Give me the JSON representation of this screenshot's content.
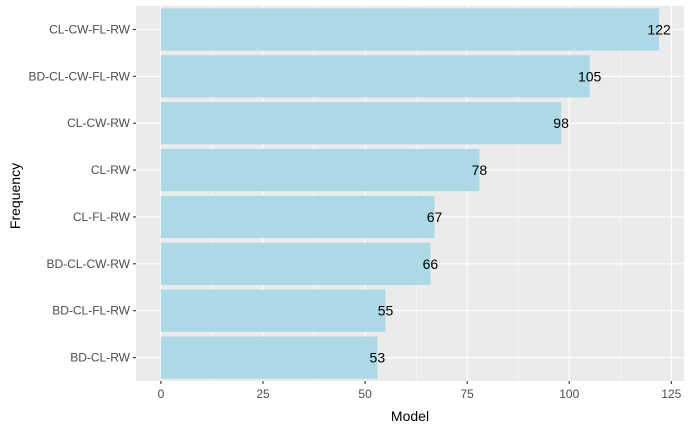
{
  "chart_data": {
    "type": "bar",
    "orientation": "horizontal",
    "categories": [
      "CL-CW-FL-RW",
      "BD-CL-CW-FL-RW",
      "CL-CW-RW",
      "CL-RW",
      "CL-FL-RW",
      "BD-CL-CW-RW",
      "BD-CL-FL-RW",
      "BD-CL-RW"
    ],
    "values": [
      122,
      105,
      98,
      78,
      67,
      66,
      55,
      53
    ],
    "data_labels": [
      "122",
      "105",
      "98",
      "78",
      "67",
      "66",
      "55",
      "53"
    ],
    "xlabel": "Model",
    "ylabel": "Frequency",
    "xlim": [
      -6.1,
      128.1
    ],
    "x_ticks": [
      0,
      25,
      50,
      75,
      100,
      125
    ],
    "x_tick_labels": [
      "0",
      "25",
      "50",
      "75",
      "100",
      "125"
    ],
    "grid": true,
    "legend": "none",
    "bar_color": "#add8e6",
    "panel_background": "#ebebeb",
    "gridline_color": "#ffffff"
  }
}
